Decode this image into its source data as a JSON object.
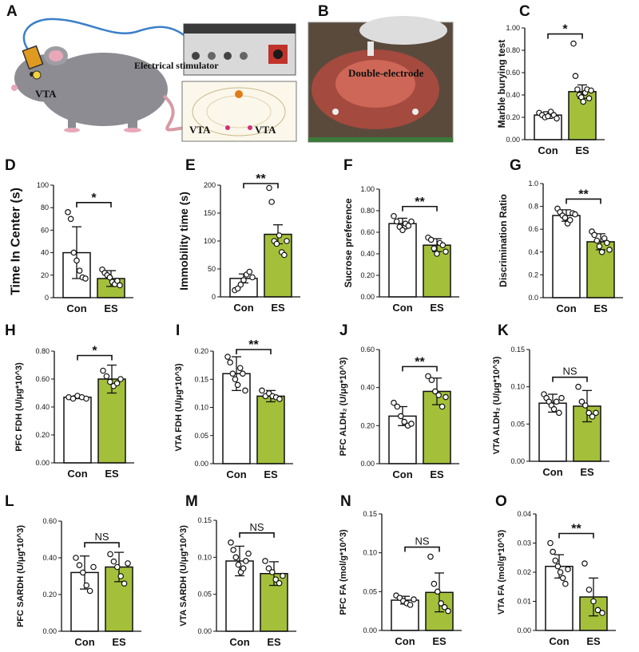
{
  "colors": {
    "con_bar": "#ffffff",
    "es_bar": "#a4c03b",
    "bar_stroke": "#111111",
    "mouse_body": "#8c8c92",
    "cable": "#3a7fc8"
  },
  "illustration": {
    "panel_a_letter": "A",
    "panel_b_letter": "B",
    "stimulator_label": "Electrical stimulator",
    "vta_mouse_label": "VTA",
    "vta_left_label": "VTA",
    "vta_right_label": "VTA",
    "electrode_label": "Double-electrode"
  },
  "chart_data": [
    {
      "id": "C",
      "letter": "C",
      "type": "bar",
      "categories": [
        "Con",
        "ES"
      ],
      "ylabel": "Marble burying test",
      "ylim": [
        0,
        1.0
      ],
      "yticks": [
        0.0,
        0.2,
        0.4,
        0.6,
        0.8,
        1.0
      ],
      "ytick_labels": [
        "0.00",
        "0.20",
        "0.40",
        "0.60",
        "0.80",
        "1.00"
      ],
      "means": [
        0.22,
        0.43
      ],
      "errors": [
        0.03,
        0.06
      ],
      "points": [
        [
          0.24,
          0.22,
          0.2,
          0.21,
          0.25,
          0.22,
          0.19
        ],
        [
          0.86,
          0.57,
          0.45,
          0.4,
          0.38,
          0.34,
          0.42,
          0.45,
          0.37,
          0.44
        ]
      ],
      "significance": "*"
    },
    {
      "id": "D",
      "letter": "D",
      "type": "bar",
      "categories": [
        "Con",
        "ES"
      ],
      "ylabel": "Time In Center (s)",
      "ylim": [
        0,
        100
      ],
      "yticks": [
        0,
        20,
        40,
        60,
        80,
        100
      ],
      "ytick_labels": [
        "0",
        "20",
        "40",
        "60",
        "80",
        "100"
      ],
      "means": [
        40,
        17
      ],
      "errors": [
        23,
        7
      ],
      "points": [
        [
          76,
          70,
          40,
          33,
          24,
          18,
          17
        ],
        [
          25,
          22,
          20,
          18,
          14,
          12,
          15,
          11
        ]
      ],
      "significance": "*"
    },
    {
      "id": "E",
      "letter": "E",
      "type": "bar",
      "categories": [
        "Con",
        "ES"
      ],
      "ylabel": "Immobility time (s)",
      "ylim": [
        0,
        200
      ],
      "yticks": [
        0,
        50,
        100,
        150,
        200
      ],
      "ytick_labels": [
        "0",
        "50",
        "100",
        "150",
        "200"
      ],
      "means": [
        33,
        112
      ],
      "errors": [
        8,
        17
      ],
      "points": [
        [
          12,
          15,
          22,
          30,
          40,
          45,
          35
        ],
        [
          195,
          170,
          100,
          95,
          110,
          80,
          75,
          100
        ]
      ],
      "significance": "**"
    },
    {
      "id": "F",
      "letter": "F",
      "type": "bar",
      "categories": [
        "Con",
        "ES"
      ],
      "ylabel": "Sucrose preference",
      "ylim": [
        0,
        1.0
      ],
      "yticks": [
        0.0,
        0.2,
        0.4,
        0.6,
        0.8,
        1.0
      ],
      "ytick_labels": [
        "0.00",
        "0.20",
        "0.40",
        "0.60",
        "0.80",
        "1.00"
      ],
      "means": [
        0.68,
        0.48
      ],
      "errors": [
        0.05,
        0.06
      ],
      "points": [
        [
          0.75,
          0.7,
          0.65,
          0.62,
          0.68,
          0.66,
          0.7
        ],
        [
          0.55,
          0.53,
          0.45,
          0.4,
          0.5,
          0.48,
          0.42
        ]
      ],
      "significance": "**"
    },
    {
      "id": "G",
      "letter": "G",
      "type": "bar",
      "categories": [
        "Con",
        "ES"
      ],
      "ylabel": "Discrimination Ratio",
      "ylim": [
        0,
        1.0
      ],
      "yticks": [
        0.0,
        0.2,
        0.4,
        0.6,
        0.8,
        1.0
      ],
      "ytick_labels": [
        "0.0",
        "0.2",
        "0.4",
        "0.6",
        "0.8",
        "1.0"
      ],
      "means": [
        0.72,
        0.49
      ],
      "errors": [
        0.05,
        0.07
      ],
      "points": [
        [
          0.78,
          0.75,
          0.72,
          0.7,
          0.65,
          0.68,
          0.74,
          0.73
        ],
        [
          0.58,
          0.55,
          0.5,
          0.45,
          0.4,
          0.52,
          0.48,
          0.42
        ]
      ],
      "significance": "**"
    },
    {
      "id": "H",
      "letter": "H",
      "type": "bar",
      "categories": [
        "Con",
        "ES"
      ],
      "ylabel": "PFC FDH (U/μg*10^3)",
      "ylim": [
        0,
        0.8
      ],
      "yticks": [
        0.0,
        0.2,
        0.4,
        0.6,
        0.8
      ],
      "ytick_labels": [
        "0.00",
        "0.20",
        "0.40",
        "0.60",
        "0.80"
      ],
      "means": [
        0.47,
        0.6
      ],
      "errors": [
        0.01,
        0.1
      ],
      "points": [
        [
          0.47,
          0.46,
          0.48,
          0.47,
          0.46
        ],
        [
          0.66,
          0.62,
          0.58,
          0.55,
          0.57,
          0.6
        ]
      ],
      "significance": "*"
    },
    {
      "id": "I",
      "letter": "I",
      "type": "bar",
      "categories": [
        "Con",
        "ES"
      ],
      "ylabel": "VTA FDH (U/μg*10^3)",
      "ylim": [
        0,
        0.2
      ],
      "yticks": [
        0.0,
        0.05,
        0.1,
        0.15,
        0.2
      ],
      "ytick_labels": [
        "0.00",
        "0.05",
        "0.10",
        "0.15",
        "0.20"
      ],
      "means": [
        0.16,
        0.12
      ],
      "errors": [
        0.03,
        0.01
      ],
      "points": [
        [
          0.19,
          0.18,
          0.16,
          0.15,
          0.14,
          0.17,
          0.16,
          0.13
        ],
        [
          0.13,
          0.12,
          0.125,
          0.12,
          0.118,
          0.115
        ]
      ],
      "significance": "**"
    },
    {
      "id": "J",
      "letter": "J",
      "type": "bar",
      "categories": [
        "Con",
        "ES"
      ],
      "ylabel": "PFC ALDH₂ (U/μg*10^3)",
      "ylim": [
        0,
        0.6
      ],
      "yticks": [
        0.0,
        0.2,
        0.4,
        0.6
      ],
      "ytick_labels": [
        "0.00",
        "0.20",
        "0.40",
        "0.60"
      ],
      "means": [
        0.25,
        0.38
      ],
      "errors": [
        0.05,
        0.07
      ],
      "points": [
        [
          0.32,
          0.3,
          0.25,
          0.22,
          0.2,
          0.21
        ],
        [
          0.46,
          0.44,
          0.38,
          0.36,
          0.3,
          0.35
        ]
      ],
      "significance": "**"
    },
    {
      "id": "K",
      "letter": "K",
      "type": "bar",
      "categories": [
        "Con",
        "ES"
      ],
      "ylabel": "VTA ALDH₂ (U/μg*10^3)",
      "ylim": [
        0,
        0.15
      ],
      "yticks": [
        0.0,
        0.05,
        0.1,
        0.15
      ],
      "ytick_labels": [
        "0.00",
        "0.05",
        "0.10",
        "0.15"
      ],
      "means": [
        0.078,
        0.074
      ],
      "errors": [
        0.012,
        0.021
      ],
      "points": [
        [
          0.09,
          0.085,
          0.08,
          0.075,
          0.07,
          0.08,
          0.065,
          0.085
        ],
        [
          0.1,
          0.08,
          0.075,
          0.065,
          0.06,
          0.065
        ]
      ],
      "significance": "NS"
    },
    {
      "id": "L",
      "letter": "L",
      "type": "bar",
      "categories": [
        "Con",
        "ES"
      ],
      "ylabel": "PFC SARDH (U/μg*10^3)",
      "ylim": [
        0,
        0.6
      ],
      "yticks": [
        0.0,
        0.2,
        0.4,
        0.6
      ],
      "ytick_labels": [
        "0.00",
        "0.20",
        "0.40",
        "0.60"
      ],
      "means": [
        0.32,
        0.35
      ],
      "errors": [
        0.09,
        0.08
      ],
      "points": [
        [
          0.4,
          0.36,
          0.32,
          0.25,
          0.22,
          0.35
        ],
        [
          0.42,
          0.38,
          0.35,
          0.3,
          0.26,
          0.37
        ]
      ],
      "significance": "NS"
    },
    {
      "id": "M",
      "letter": "M",
      "type": "bar",
      "categories": [
        "Con",
        "ES"
      ],
      "ylabel": "VTA SARDH (U/μg*10^3)",
      "ylim": [
        0,
        0.15
      ],
      "yticks": [
        0.0,
        0.05,
        0.1,
        0.15
      ],
      "ytick_labels": [
        "0.00",
        "0.05",
        "0.10",
        "0.15"
      ],
      "means": [
        0.095,
        0.078
      ],
      "errors": [
        0.02,
        0.016
      ],
      "points": [
        [
          0.12,
          0.11,
          0.1,
          0.09,
          0.08,
          0.085,
          0.095,
          0.105
        ],
        [
          0.095,
          0.085,
          0.08,
          0.07,
          0.065,
          0.075
        ]
      ],
      "significance": "NS"
    },
    {
      "id": "N",
      "letter": "N",
      "type": "bar",
      "categories": [
        "Con",
        "ES"
      ],
      "ylabel": "PFC FA (mol/g*10^3)",
      "ylim": [
        0,
        0.15
      ],
      "yticks": [
        0.0,
        0.05,
        0.1,
        0.15
      ],
      "ytick_labels": [
        "0.00",
        "0.05",
        "0.10",
        "0.15"
      ],
      "means": [
        0.039,
        0.049
      ],
      "errors": [
        0.005,
        0.025
      ],
      "points": [
        [
          0.045,
          0.042,
          0.038,
          0.035,
          0.033,
          0.04
        ],
        [
          0.095,
          0.06,
          0.05,
          0.035,
          0.03,
          0.025
        ]
      ],
      "significance": "NS"
    },
    {
      "id": "O",
      "letter": "O",
      "type": "bar",
      "categories": [
        "Con",
        "ES"
      ],
      "ylabel": "VTA FA (mol/g*10^3)",
      "ylim": [
        0,
        0.04
      ],
      "yticks": [
        0.0,
        0.01,
        0.02,
        0.03,
        0.04
      ],
      "ytick_labels": [
        "0.00",
        "0.01",
        "0.02",
        "0.03",
        "0.04"
      ],
      "means": [
        0.022,
        0.0115
      ],
      "errors": [
        0.004,
        0.0065
      ],
      "points": [
        [
          0.03,
          0.027,
          0.024,
          0.022,
          0.02,
          0.018,
          0.016,
          0.021
        ],
        [
          0.023,
          0.014,
          0.01,
          0.007,
          0.006
        ]
      ],
      "significance": "**"
    }
  ]
}
